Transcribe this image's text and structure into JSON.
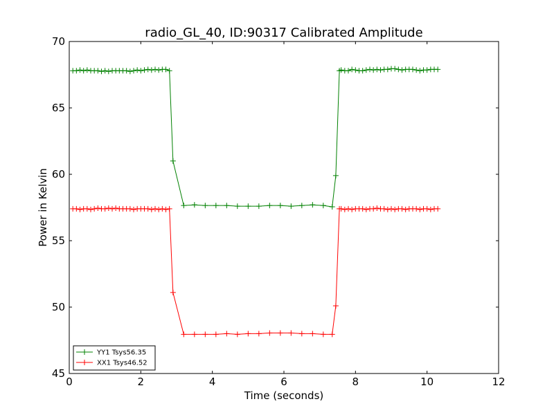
{
  "chart_data": {
    "type": "line",
    "title": "radio_GL_40, ID:90317 Calibrated Amplitude",
    "xlabel": "Time (seconds)",
    "ylabel": "Power in Kelvin",
    "xlim": [
      0,
      12
    ],
    "ylim": [
      45,
      70
    ],
    "xticks": [
      0,
      2,
      4,
      6,
      8,
      10,
      12
    ],
    "yticks": [
      45,
      50,
      55,
      60,
      65,
      70
    ],
    "grid": false,
    "legend_position": "lower-left",
    "series": [
      {
        "name": "YY1 Tsys56.35",
        "color": "#008000",
        "marker": "plus",
        "x": [
          0.1,
          0.2,
          0.3,
          0.4,
          0.5,
          0.6,
          0.7,
          0.8,
          0.9,
          1.0,
          1.1,
          1.2,
          1.3,
          1.4,
          1.5,
          1.6,
          1.7,
          1.8,
          1.9,
          2.0,
          2.1,
          2.2,
          2.3,
          2.4,
          2.5,
          2.6,
          2.7,
          2.8,
          2.9,
          3.2,
          3.5,
          3.8,
          4.1,
          4.4,
          4.7,
          5.0,
          5.3,
          5.6,
          5.9,
          6.2,
          6.5,
          6.8,
          7.1,
          7.35,
          7.45,
          7.55,
          7.6,
          7.7,
          7.8,
          7.9,
          8.0,
          8.1,
          8.2,
          8.3,
          8.4,
          8.5,
          8.6,
          8.7,
          8.8,
          8.9,
          9.0,
          9.1,
          9.2,
          9.3,
          9.4,
          9.5,
          9.6,
          9.7,
          9.8,
          9.9,
          10.0,
          10.1,
          10.2,
          10.3
        ],
        "y": [
          67.8,
          67.8,
          67.85,
          67.8,
          67.85,
          67.8,
          67.8,
          67.8,
          67.75,
          67.8,
          67.75,
          67.8,
          67.8,
          67.8,
          67.8,
          67.8,
          67.75,
          67.8,
          67.85,
          67.8,
          67.85,
          67.9,
          67.85,
          67.9,
          67.85,
          67.9,
          67.9,
          67.8,
          61.0,
          57.65,
          57.7,
          57.65,
          57.65,
          57.65,
          57.6,
          57.6,
          57.6,
          57.65,
          57.65,
          57.6,
          57.65,
          57.7,
          57.65,
          57.55,
          59.9,
          67.8,
          67.85,
          67.8,
          67.8,
          67.9,
          67.85,
          67.8,
          67.8,
          67.85,
          67.9,
          67.85,
          67.9,
          67.85,
          67.9,
          67.9,
          67.95,
          67.95,
          67.9,
          67.85,
          67.9,
          67.9,
          67.9,
          67.85,
          67.8,
          67.85,
          67.85,
          67.9,
          67.9,
          67.9
        ]
      },
      {
        "name": "XX1 Tsys46.52",
        "color": "#ff0000",
        "marker": "plus",
        "x": [
          0.1,
          0.2,
          0.3,
          0.4,
          0.5,
          0.6,
          0.7,
          0.8,
          0.9,
          1.0,
          1.1,
          1.2,
          1.3,
          1.4,
          1.5,
          1.6,
          1.7,
          1.8,
          1.9,
          2.0,
          2.1,
          2.2,
          2.3,
          2.4,
          2.5,
          2.6,
          2.7,
          2.8,
          2.9,
          3.2,
          3.5,
          3.8,
          4.1,
          4.4,
          4.7,
          5.0,
          5.3,
          5.6,
          5.9,
          6.2,
          6.5,
          6.8,
          7.1,
          7.35,
          7.45,
          7.55,
          7.6,
          7.7,
          7.8,
          7.9,
          8.0,
          8.1,
          8.2,
          8.3,
          8.4,
          8.5,
          8.6,
          8.7,
          8.8,
          8.9,
          9.0,
          9.1,
          9.2,
          9.3,
          9.4,
          9.5,
          9.6,
          9.7,
          9.8,
          9.9,
          10.0,
          10.1,
          10.2,
          10.3
        ],
        "y": [
          57.4,
          57.4,
          57.35,
          57.4,
          57.4,
          57.35,
          57.4,
          57.45,
          57.4,
          57.4,
          57.45,
          57.4,
          57.45,
          57.4,
          57.4,
          57.4,
          57.4,
          57.35,
          57.4,
          57.4,
          57.4,
          57.4,
          57.35,
          57.4,
          57.35,
          57.4,
          57.35,
          57.4,
          51.1,
          47.95,
          47.95,
          47.95,
          47.95,
          48.0,
          47.95,
          48.0,
          48.0,
          48.05,
          48.05,
          48.05,
          48.0,
          48.0,
          47.95,
          47.95,
          50.1,
          57.4,
          57.4,
          57.35,
          57.4,
          57.35,
          57.4,
          57.4,
          57.4,
          57.35,
          57.4,
          57.4,
          57.45,
          57.4,
          57.4,
          57.35,
          57.4,
          57.35,
          57.4,
          57.4,
          57.35,
          57.4,
          57.4,
          57.4,
          57.35,
          57.4,
          57.4,
          57.35,
          57.4,
          57.4
        ]
      }
    ]
  }
}
